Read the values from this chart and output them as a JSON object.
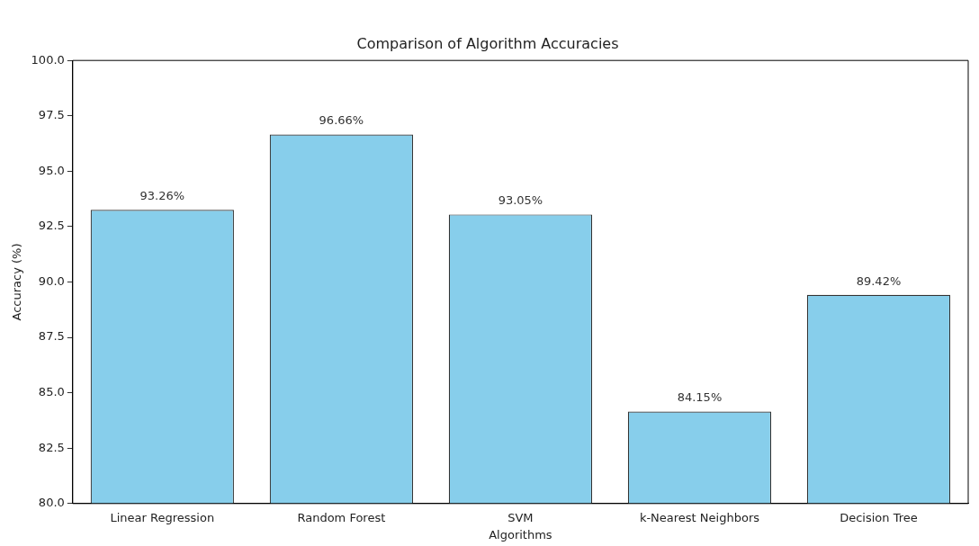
{
  "chart_data": {
    "type": "bar",
    "title": "Comparison of Algorithm Accuracies",
    "xlabel": "Algorithms",
    "ylabel": "Accuracy (%)",
    "categories": [
      "Linear Regression",
      "Random Forest",
      "SVM",
      "k-Nearest Neighbors",
      "Decision Tree"
    ],
    "values": [
      93.26,
      96.66,
      93.05,
      84.15,
      89.42
    ],
    "value_labels": [
      "93.26%",
      "96.66%",
      "93.05%",
      "84.15%",
      "89.42%"
    ],
    "color": "#87ceeb",
    "ylim": [
      80,
      100
    ],
    "yticks": [
      {
        "value": 80,
        "label": "80.0"
      },
      {
        "value": 82.5,
        "label": "82.5"
      },
      {
        "value": 85,
        "label": "85.0"
      },
      {
        "value": 87.5,
        "label": "87.5"
      },
      {
        "value": 90,
        "label": "90.0"
      },
      {
        "value": 92.5,
        "label": "92.5"
      },
      {
        "value": 95,
        "label": "95.0"
      },
      {
        "value": 97.5,
        "label": "97.5"
      },
      {
        "value": 100,
        "label": "100.0"
      }
    ],
    "grid": false,
    "legend": false
  }
}
